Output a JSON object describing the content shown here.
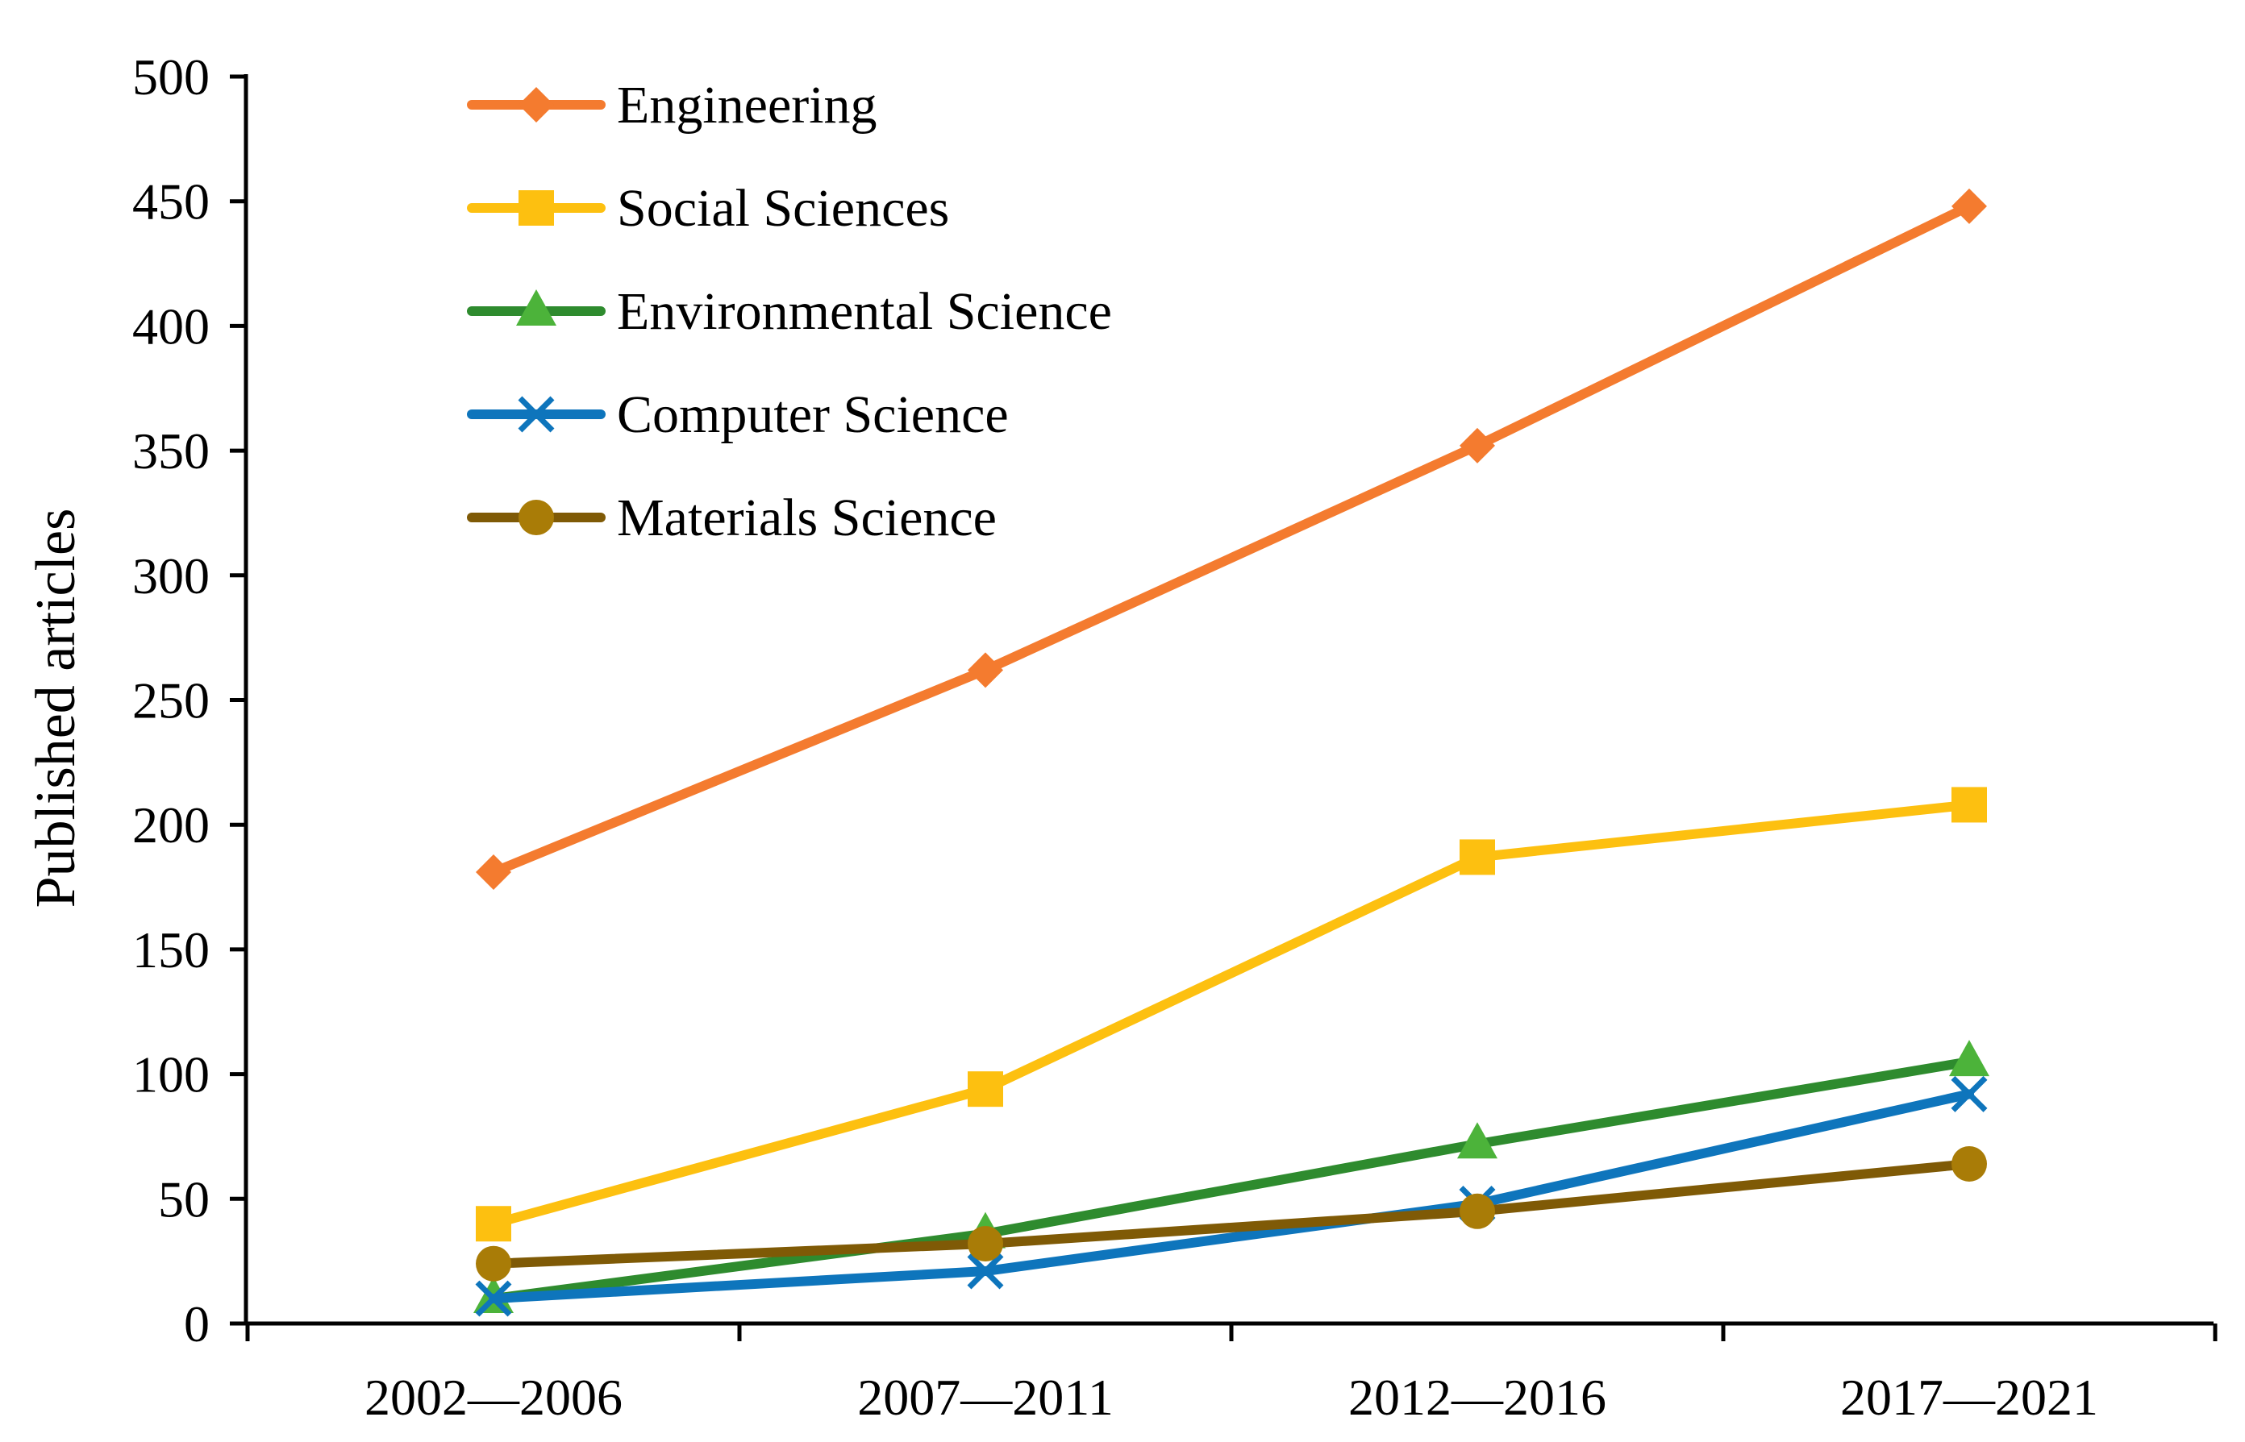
{
  "chart_data": {
    "type": "line",
    "title": "",
    "xlabel": "",
    "ylabel": "Published articles",
    "ylim": [
      0,
      500
    ],
    "yticks": [
      0,
      50,
      100,
      150,
      200,
      250,
      300,
      350,
      400,
      450,
      500
    ],
    "categories": [
      "2002—2006",
      "2007—2011",
      "2012—2016",
      "2017—2021"
    ],
    "grid": false,
    "legend_position": "top-left",
    "series": [
      {
        "name": "Engineering",
        "color": "#F47B2F",
        "marker": "diamond",
        "values": [
          181,
          262,
          352,
          448
        ]
      },
      {
        "name": "Social Sciences",
        "color": "#FDC010",
        "marker": "square",
        "values": [
          40,
          94,
          187,
          208
        ]
      },
      {
        "name": "Environmental Science",
        "color": "#2E8B2E",
        "marker_color": "#4CB33A",
        "marker": "triangle",
        "values": [
          10,
          36,
          72,
          105
        ]
      },
      {
        "name": "Computer Science",
        "color": "#0E75BC",
        "marker": "x",
        "values": [
          10,
          21,
          48,
          92
        ]
      },
      {
        "name": "Materials Science",
        "color": "#7F5A06",
        "marker_color": "#A97C07",
        "marker": "circle",
        "values": [
          24,
          32,
          45,
          64
        ]
      }
    ]
  }
}
